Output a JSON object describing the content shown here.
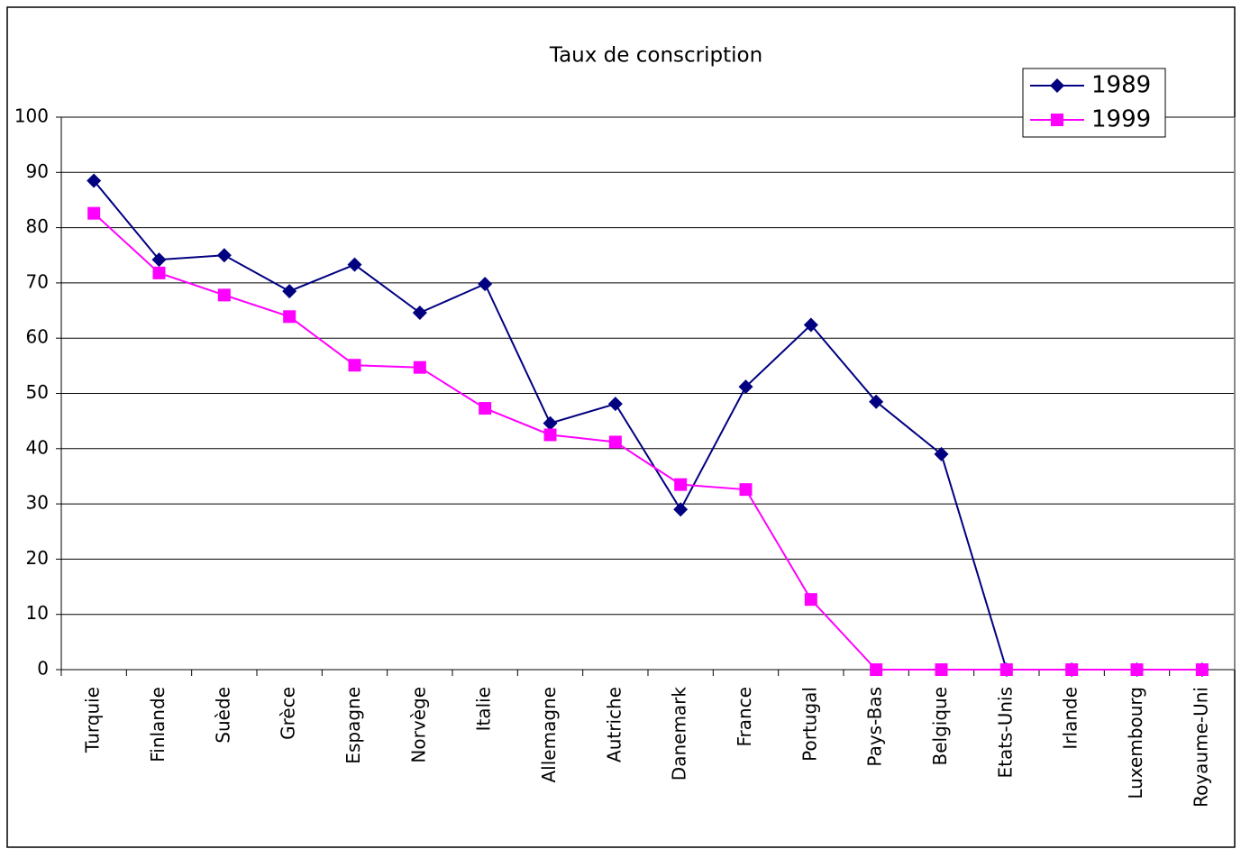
{
  "chart_data": {
    "type": "line",
    "title": "Taux de conscription",
    "categories": [
      "Turquie",
      "Finlande",
      "Suède",
      "Grèce",
      "Espagne",
      "Norvège",
      "Italie",
      "Allemagne",
      "Autriche",
      "Danemark",
      "France",
      "Portugal",
      "Pays-Bas",
      "Belgique",
      "Etats-Unis",
      "Irlande",
      "Luxembourg",
      "Royaume-Uni"
    ],
    "series": [
      {
        "name": "1989",
        "color": "#000080",
        "marker": "diamond",
        "values": [
          88.5,
          74.2,
          75,
          68.5,
          73.3,
          64.6,
          69.8,
          44.6,
          48.1,
          29,
          51.2,
          62.4,
          48.5,
          39,
          0,
          0,
          0,
          0
        ]
      },
      {
        "name": "1999",
        "color": "#ff00ff",
        "marker": "square",
        "values": [
          82.6,
          71.8,
          67.8,
          63.9,
          55.1,
          54.7,
          47.3,
          42.5,
          41.2,
          33.5,
          32.6,
          12.7,
          0,
          0,
          0,
          0,
          0,
          0
        ]
      }
    ],
    "ylim": [
      0,
      100
    ],
    "yticks": [
      0,
      10,
      20,
      30,
      40,
      50,
      60,
      70,
      80,
      90,
      100
    ],
    "grid": true,
    "legend": "top-right"
  }
}
